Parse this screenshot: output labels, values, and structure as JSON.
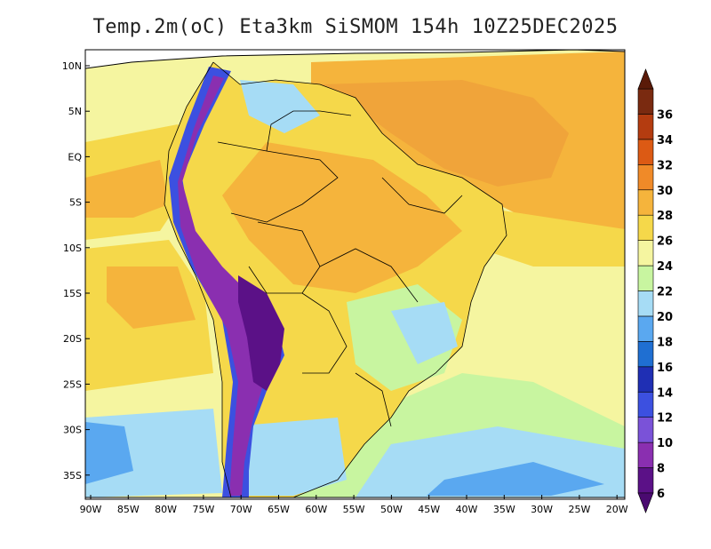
{
  "title": "Temp.2m(oC) Eta3km SiSMOM 154h 10Z25DEC2025",
  "lat_labels": [
    "10N",
    "5N",
    "EQ",
    "5S",
    "10S",
    "15S",
    "20S",
    "25S",
    "30S",
    "35S"
  ],
  "lon_labels": [
    "90W",
    "85W",
    "80W",
    "75W",
    "70W",
    "65W",
    "60W",
    "55W",
    "50W",
    "45W",
    "40W",
    "35W",
    "30W",
    "25W",
    "20W"
  ],
  "colorbar": {
    "unit": "oC",
    "bins": [
      {
        "label": "6",
        "color": "#5b1187"
      },
      {
        "label": "8",
        "color": "#8a2fb0"
      },
      {
        "label": "10",
        "color": "#7a52d8"
      },
      {
        "label": "12",
        "color": "#3c50e0"
      },
      {
        "label": "14",
        "color": "#1f2fb4"
      },
      {
        "label": "16",
        "color": "#1f6fd2"
      },
      {
        "label": "18",
        "color": "#5aa8f0"
      },
      {
        "label": "20",
        "color": "#a6dcf5"
      },
      {
        "label": "22",
        "color": "#c8f5a0"
      },
      {
        "label": "24",
        "color": "#f5f5a0"
      },
      {
        "label": "26",
        "color": "#f5d84a"
      },
      {
        "label": "28",
        "color": "#f5b43c"
      },
      {
        "label": "30",
        "color": "#f08a28"
      },
      {
        "label": "32",
        "color": "#dc5a14"
      },
      {
        "label": "34",
        "color": "#b43c10"
      },
      {
        "label": "36",
        "color": "#7a2a10"
      }
    ]
  }
}
